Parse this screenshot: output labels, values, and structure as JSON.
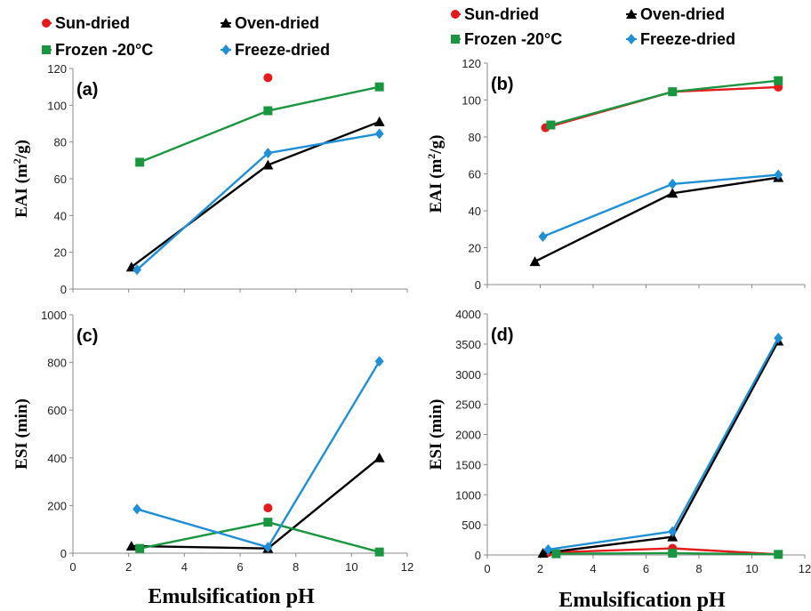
{
  "xlabel": "Emulsification pH",
  "series_style": {
    "Sun-dried": {
      "color": "#e41a1c",
      "marker": "circle"
    },
    "Oven-dried": {
      "color": "#000000",
      "marker": "triangle"
    },
    "Frozen -20°C": {
      "color": "#1a9641",
      "marker": "square"
    },
    "Freeze-dried": {
      "color": "#1f8fd6",
      "marker": "diamond"
    }
  },
  "chart_data": [
    {
      "type": "line",
      "panel": "(a)",
      "ylabel": "EAI (m²/g)",
      "ylabel_main": "EAI (m",
      "ylabel_sup": "2",
      "ylabel_tail": "/g)",
      "ylim": [
        0,
        120
      ],
      "yticks": [
        0,
        20,
        40,
        60,
        80,
        100,
        120
      ],
      "xlim": [
        0,
        12
      ],
      "xticks": [],
      "legend": [
        "Sun-dried",
        "Oven-dried",
        "Frozen -20°C",
        "Freeze-dried"
      ],
      "series": [
        {
          "name": "Sun-dried",
          "x": [
            7
          ],
          "y": [
            115
          ]
        },
        {
          "name": "Oven-dried",
          "x": [
            2.1,
            7,
            11
          ],
          "y": [
            12,
            67.5,
            91
          ]
        },
        {
          "name": "Frozen -20°C",
          "x": [
            2.4,
            7,
            11
          ],
          "y": [
            69,
            97,
            110
          ]
        },
        {
          "name": "Freeze-dried",
          "x": [
            2.3,
            7,
            11
          ],
          "y": [
            10.5,
            74,
            84.5
          ]
        }
      ]
    },
    {
      "type": "line",
      "panel": "(b)",
      "ylabel": "EAI (m²/g)",
      "ylabel_main": "EAI (m",
      "ylabel_sup": "2",
      "ylabel_tail": "/g)",
      "ylim": [
        0,
        120
      ],
      "yticks": [
        0,
        20,
        40,
        60,
        80,
        100,
        120
      ],
      "xlim": [
        0,
        12
      ],
      "xticks": [],
      "legend": [
        "Sun-dried",
        "Oven-dried",
        "Frozen -20°C",
        "Freeze-dried"
      ],
      "series": [
        {
          "name": "Sun-dried",
          "x": [
            2.2,
            7,
            11
          ],
          "y": [
            85,
            104.5,
            107
          ]
        },
        {
          "name": "Oven-dried",
          "x": [
            1.8,
            7,
            11
          ],
          "y": [
            12.5,
            49.5,
            58
          ]
        },
        {
          "name": "Frozen -20°C",
          "x": [
            2.4,
            7,
            11
          ],
          "y": [
            86.5,
            104.5,
            110.5
          ]
        },
        {
          "name": "Freeze-dried",
          "x": [
            2.1,
            7,
            11
          ],
          "y": [
            26,
            54.5,
            59.5
          ]
        }
      ]
    },
    {
      "type": "line",
      "panel": "(c)",
      "ylabel": "ESI (min)",
      "ylabel_main": "ESI (min)",
      "ylabel_sup": "",
      "ylabel_tail": "",
      "ylim": [
        0,
        1000
      ],
      "yticks": [
        0,
        200,
        400,
        600,
        800,
        1000
      ],
      "xlim": [
        0,
        12
      ],
      "xticks": [
        0,
        2,
        4,
        6,
        8,
        10,
        12
      ],
      "legend": [],
      "series": [
        {
          "name": "Sun-dried",
          "x": [
            7
          ],
          "y": [
            190
          ]
        },
        {
          "name": "Oven-dried",
          "x": [
            2.1,
            7,
            11
          ],
          "y": [
            30,
            20,
            400
          ]
        },
        {
          "name": "Frozen -20°C",
          "x": [
            2.4,
            7,
            11
          ],
          "y": [
            20,
            130,
            5
          ]
        },
        {
          "name": "Freeze-dried",
          "x": [
            2.3,
            7,
            11
          ],
          "y": [
            185,
            25,
            805
          ]
        }
      ]
    },
    {
      "type": "line",
      "panel": "(d)",
      "ylabel": "ESI (min)",
      "ylabel_main": "ESI (min)",
      "ylabel_sup": "",
      "ylabel_tail": "",
      "ylim": [
        0,
        4000
      ],
      "yticks": [
        0,
        500,
        1000,
        1500,
        2000,
        2500,
        3000,
        3500,
        4000
      ],
      "xlim": [
        0,
        12
      ],
      "xticks": [
        0,
        2,
        4,
        6,
        8,
        10,
        12
      ],
      "legend": [],
      "series": [
        {
          "name": "Sun-dried",
          "x": [
            2.3,
            7,
            11
          ],
          "y": [
            40,
            110,
            10
          ]
        },
        {
          "name": "Oven-dried",
          "x": [
            2.1,
            7,
            11
          ],
          "y": [
            30,
            300,
            3550
          ]
        },
        {
          "name": "Frozen -20°C",
          "x": [
            2.6,
            7,
            11
          ],
          "y": [
            20,
            30,
            10
          ]
        },
        {
          "name": "Freeze-dried",
          "x": [
            2.3,
            7,
            11
          ],
          "y": [
            90,
            390,
            3600
          ]
        }
      ]
    }
  ]
}
